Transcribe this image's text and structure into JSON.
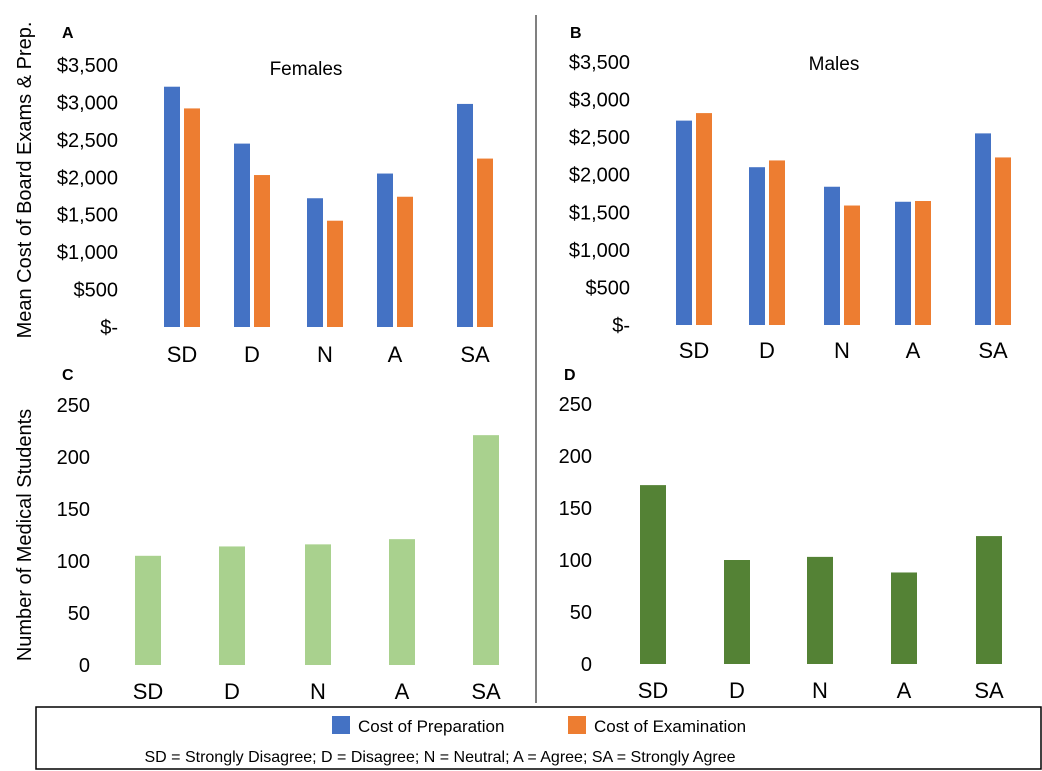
{
  "colors": {
    "preparation": "#4472C4",
    "examination": "#ED7D31",
    "females_students": "#A9D18E",
    "males_students": "#548235",
    "divider": "#000000"
  },
  "ylabels": {
    "cost": "Mean Cost of Board Exams & Prep.",
    "students": "Number of Medical Students"
  },
  "legend": {
    "series": [
      "Cost of Preparation",
      "Cost of Examination"
    ],
    "note": "SD = Strongly Disagree; D = Disagree; N = Neutral; A = Agree; SA = Strongly Agree"
  },
  "chart_data": [
    {
      "panel": "A",
      "type": "bar",
      "title": "Females",
      "ylabel": "Mean Cost of Board Exams & Prep.",
      "categories": [
        "SD",
        "D",
        "N",
        "A",
        "SA"
      ],
      "ylim": [
        0,
        3500
      ],
      "yticks": [
        0,
        500,
        1000,
        1500,
        2000,
        2500,
        3000,
        3500
      ],
      "yticklabels": [
        "$-",
        "$500",
        "$1,000",
        "$1,500",
        "$2,000",
        "$2,500",
        "$3,000",
        "$3,500"
      ],
      "series": [
        {
          "name": "Cost of Preparation",
          "color": "#4472C4",
          "values": [
            3210,
            2450,
            1720,
            2050,
            2980
          ]
        },
        {
          "name": "Cost of Examination",
          "color": "#ED7D31",
          "values": [
            2920,
            2030,
            1420,
            1740,
            2250
          ]
        }
      ],
      "grid": false
    },
    {
      "panel": "B",
      "type": "bar",
      "title": "Males",
      "ylabel": "",
      "categories": [
        "SD",
        "D",
        "N",
        "A",
        "SA"
      ],
      "ylim": [
        0,
        3500
      ],
      "yticks": [
        0,
        500,
        1000,
        1500,
        2000,
        2500,
        3000,
        3500
      ],
      "yticklabels": [
        "$-",
        "$500",
        "$1,000",
        "$1,500",
        "$2,000",
        "$2,500",
        "$3,000",
        "$3,500"
      ],
      "series": [
        {
          "name": "Cost of Preparation",
          "color": "#4472C4",
          "values": [
            2720,
            2100,
            1840,
            1640,
            2550
          ]
        },
        {
          "name": "Cost of Examination",
          "color": "#ED7D31",
          "values": [
            2820,
            2190,
            1590,
            1650,
            2230
          ]
        }
      ],
      "grid": false
    },
    {
      "panel": "C",
      "type": "bar",
      "title": "",
      "ylabel": "Number of Medical Students",
      "categories": [
        "SD",
        "D",
        "N",
        "A",
        "SA"
      ],
      "ylim": [
        0,
        250
      ],
      "yticks": [
        0,
        50,
        100,
        150,
        200,
        250
      ],
      "yticklabels": [
        "0",
        "50",
        "100",
        "150",
        "200",
        "250"
      ],
      "series": [
        {
          "color": "#A9D18E",
          "values": [
            105,
            114,
            116,
            121,
            221
          ]
        }
      ],
      "grid": false
    },
    {
      "panel": "D",
      "type": "bar",
      "title": "",
      "ylabel": "",
      "categories": [
        "SD",
        "D",
        "N",
        "A",
        "SA"
      ],
      "ylim": [
        0,
        250
      ],
      "yticks": [
        0,
        50,
        100,
        150,
        200,
        250
      ],
      "yticklabels": [
        "0",
        "50",
        "100",
        "150",
        "200",
        "250"
      ],
      "series": [
        {
          "color": "#548235",
          "values": [
            172,
            100,
            103,
            88,
            123
          ]
        }
      ],
      "grid": false
    }
  ]
}
